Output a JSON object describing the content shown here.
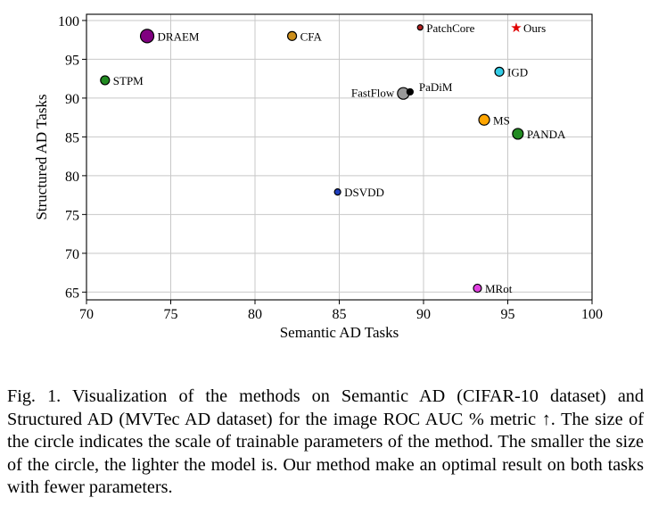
{
  "chart_data": {
    "type": "scatter",
    "xlabel": "Semantic AD Tasks",
    "ylabel": "Structured AD Tasks",
    "xlim": [
      70,
      100
    ],
    "ylim": [
      64,
      100.8
    ],
    "xticks": [
      70,
      75,
      80,
      85,
      90,
      95,
      100
    ],
    "yticks": [
      65,
      70,
      75,
      80,
      85,
      90,
      95,
      100
    ],
    "grid": true,
    "points": [
      {
        "label": "DRAEM",
        "x": 73.6,
        "y": 98.0,
        "size": 7.5,
        "color": "#800080"
      },
      {
        "label": "CFA",
        "x": 82.2,
        "y": 98.0,
        "size": 5,
        "color": "#cc8f1c"
      },
      {
        "label": "PatchCore",
        "x": 89.8,
        "y": 99.1,
        "size": 3,
        "color": "#b22222"
      },
      {
        "label": "Ours",
        "x": 95.5,
        "y": 99.1,
        "size": 4,
        "color": "#e00000",
        "marker": "star"
      },
      {
        "label": "STPM",
        "x": 71.1,
        "y": 92.3,
        "size": 5,
        "color": "#228b22"
      },
      {
        "label": "IGD",
        "x": 94.5,
        "y": 93.4,
        "size": 5,
        "color": "#33cce6"
      },
      {
        "label": "FastFlow",
        "x": 88.8,
        "y": 90.6,
        "size": 6.5,
        "color": "#999999"
      },
      {
        "label": "PaDiM",
        "x": 89.2,
        "y": 90.8,
        "size": 3.5,
        "color": "#000000"
      },
      {
        "label": "MS",
        "x": 93.6,
        "y": 87.2,
        "size": 6,
        "color": "#ffa500"
      },
      {
        "label": "PANDA",
        "x": 95.6,
        "y": 85.4,
        "size": 6,
        "color": "#228b22"
      },
      {
        "label": "DSVDD",
        "x": 84.9,
        "y": 77.9,
        "size": 3.5,
        "color": "#1f3fbf"
      },
      {
        "label": "MRot",
        "x": 93.2,
        "y": 65.5,
        "size": 4.5,
        "color": "#e040e0"
      }
    ]
  },
  "caption": "Fig. 1.  Visualization of the methods on Semantic AD (CIFAR-10 dataset) and Structured AD (MVTec AD dataset) for the image ROC AUC % metric ↑. The size of the circle indicates the scale of trainable parameters of the method. The smaller the size of the circle, the lighter the model is. Our method make an optimal result on both tasks with fewer parameters."
}
